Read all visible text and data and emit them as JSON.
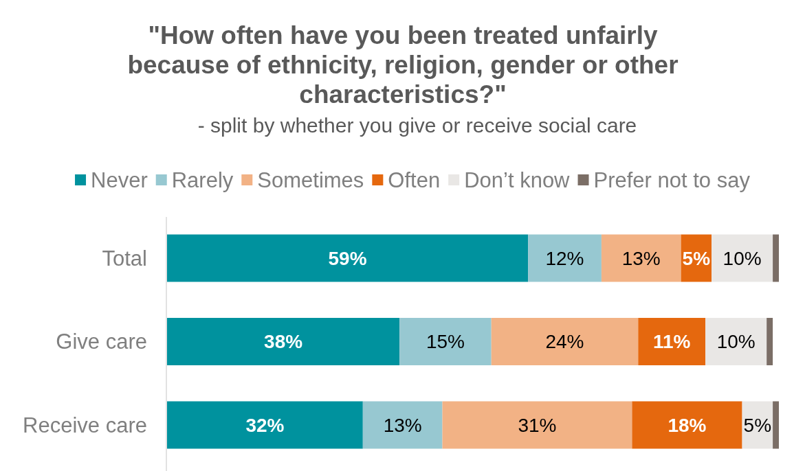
{
  "chart_data": {
    "type": "bar",
    "orientation": "horizontal",
    "stacked": true,
    "title": "\"How often have you been treated unfairly because of ethnicity, religion, gender or other characteristics?\"",
    "subtitle": "- split by whether you give or receive social care",
    "categories": [
      "Total",
      "Give care",
      "Receive care"
    ],
    "series": [
      {
        "name": "Never",
        "color": "#00929e",
        "values": [
          59,
          38,
          32
        ],
        "value_labels": [
          "59%",
          "38%",
          "32%"
        ]
      },
      {
        "name": "Rarely",
        "color": "#97c8d1",
        "values": [
          12,
          15,
          13
        ],
        "value_labels": [
          "12%",
          "15%",
          "13%"
        ]
      },
      {
        "name": "Sometimes",
        "color": "#f2b285",
        "values": [
          13,
          24,
          31
        ],
        "value_labels": [
          "13%",
          "24%",
          "31%"
        ]
      },
      {
        "name": "Often",
        "color": "#e5680e",
        "values": [
          5,
          11,
          18
        ],
        "value_labels": [
          "5%",
          "11%",
          "18%"
        ]
      },
      {
        "name": "Don’t know",
        "color": "#e9e7e5",
        "values": [
          10,
          10,
          5
        ],
        "value_labels": [
          "10%",
          "10%",
          "5%"
        ]
      },
      {
        "name": "Prefer not to say",
        "color": "#7b6e66",
        "values": [
          1,
          1,
          1
        ],
        "value_labels": [
          null,
          null,
          null
        ]
      }
    ],
    "xlim": [
      0,
      100
    ],
    "legend": "top",
    "tick_labels": "y"
  }
}
